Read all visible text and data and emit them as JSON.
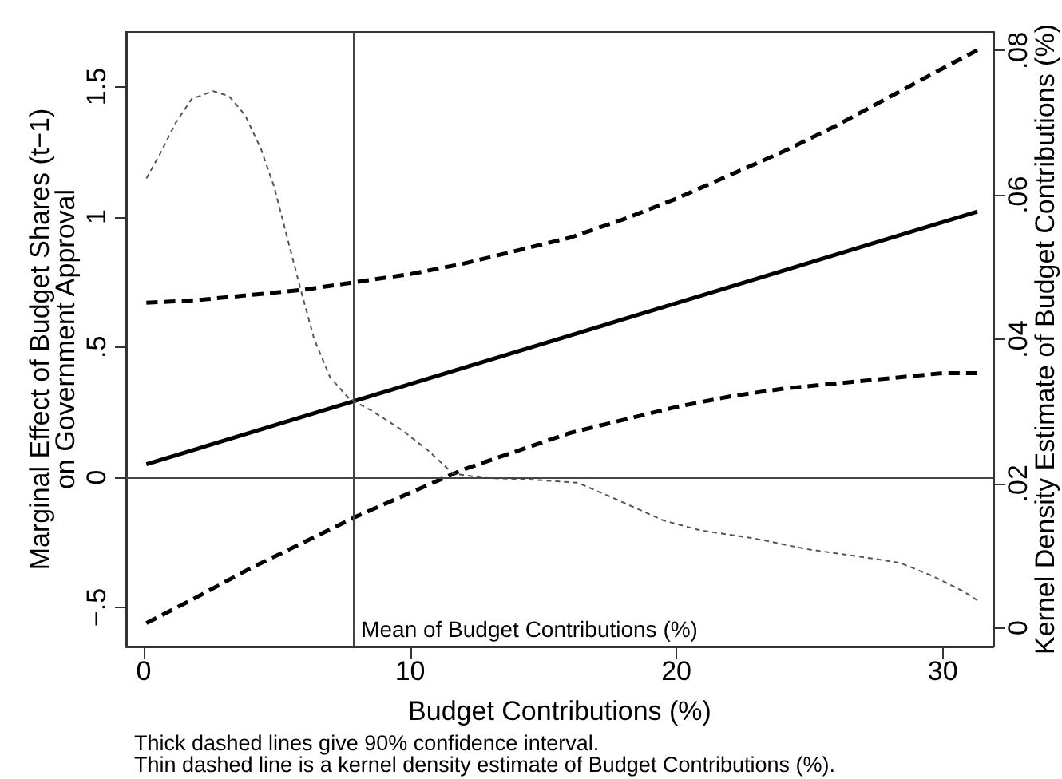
{
  "chart_data": {
    "type": "line",
    "xlabel": "Budget Contributions (%)",
    "ylabel": "Marginal Effect of Budget Shares (t−1) on Government Approval",
    "y2label": "Kernel Density Estimate of Budget Contributions (%)",
    "annotations": [
      "Thick dashed lines give 90% confidence interval.",
      "Thin dashed line is a kernel density estimate of Budget Contributions (%)."
    ],
    "x": [
      0.1,
      2,
      4,
      6,
      8,
      10,
      12,
      14,
      16,
      18,
      20,
      22,
      24,
      26,
      28,
      30,
      31.3
    ],
    "series": [
      {
        "color": "#000000",
        "line_style": "solid",
        "x": [
          0.1,
          31.3
        ],
        "values": [
          0.05,
          1.02
        ]
      },
      {
        "color": "#000000",
        "line_style": "dashed",
        "values": [
          0.67,
          0.68,
          0.7,
          0.72,
          0.75,
          0.78,
          0.82,
          0.87,
          0.92,
          0.99,
          1.07,
          1.16,
          1.25,
          1.35,
          1.46,
          1.57,
          1.64
        ]
      },
      {
        "color": "#000000",
        "line_style": "dashed",
        "values": [
          -0.56,
          -0.46,
          -0.35,
          -0.25,
          -0.15,
          -0.06,
          0.03,
          0.1,
          0.17,
          0.22,
          0.27,
          0.31,
          0.34,
          0.36,
          0.38,
          0.4,
          0.4
        ]
      },
      {
        "color": "#555555",
        "line_style": "dashed",
        "axis": "y2",
        "x": [
          0.1,
          0.6,
          1.2,
          1.8,
          2.6,
          3.2,
          3.8,
          4.4,
          4.9,
          5.4,
          5.9,
          6.4,
          7.0,
          7.7,
          8.6,
          9.7,
          10.7,
          11.6,
          12.7,
          14.7,
          16.3,
          17.5,
          19.5,
          20.9,
          22.9,
          24.9,
          27.0,
          28.4,
          29.6,
          30.8,
          31.3
        ],
        "values": [
          0.0623,
          0.0656,
          0.07,
          0.0733,
          0.0744,
          0.0737,
          0.0711,
          0.0664,
          0.0611,
          0.0539,
          0.0468,
          0.04,
          0.0347,
          0.0318,
          0.03,
          0.0274,
          0.0245,
          0.0214,
          0.0208,
          0.0205,
          0.0201,
          0.0182,
          0.0149,
          0.0135,
          0.0124,
          0.0109,
          0.0098,
          0.009,
          0.0072,
          0.005,
          0.0038
        ]
      }
    ],
    "xlim": [
      -0.66,
      31.9
    ],
    "xticks": [
      0,
      10,
      20,
      30
    ],
    "ylim": [
      -0.65,
      1.71
    ],
    "yticks": [
      {
        "value": -0.5,
        "label": "−.5"
      },
      0,
      {
        "value": 0.5,
        "label": ".5"
      },
      1,
      1.5
    ],
    "y2lim": [
      -0.0026,
      0.0826
    ],
    "y2ticks": [
      0,
      {
        "value": 0.02,
        "label": ".02"
      },
      {
        "value": 0.04,
        "label": ".04"
      },
      {
        "value": 0.06,
        "label": ".06"
      },
      {
        "value": 0.08,
        "label": ".08"
      }
    ],
    "ref_lines": [
      {
        "axis": "x",
        "value": 7.86,
        "label": "Mean of Budget Contributions (%)",
        "color": "#444444"
      },
      {
        "axis": "y",
        "value": 0,
        "color": "#444444"
      }
    ],
    "marker": "none",
    "grid": false
  }
}
